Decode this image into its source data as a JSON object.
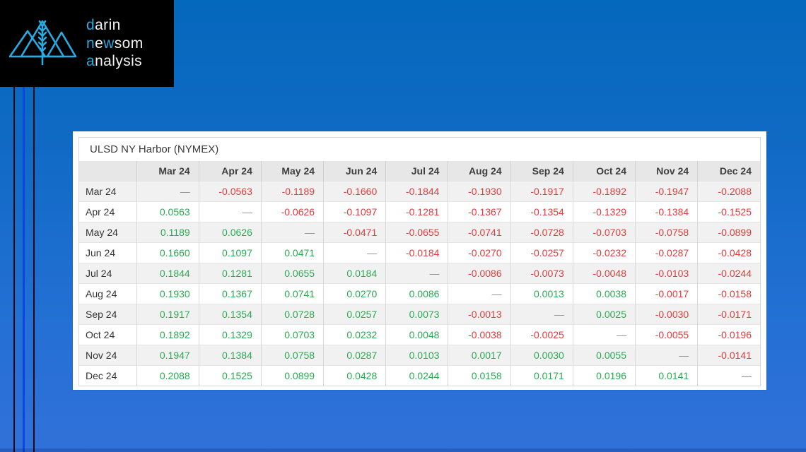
{
  "colors": {
    "accent": "#29abe2",
    "positive": "#2aab52",
    "negative": "#e23b3c",
    "dash": "#8d8d8d",
    "stripe-blue": "#0a46e6",
    "bg-top": "#0468bc",
    "bg-bottom": "#3171d9"
  },
  "logo": {
    "line1": {
      "a": "d",
      "b": "arin"
    },
    "line2": {
      "a": "n",
      "b": "e",
      "c": "w",
      "d": "som"
    },
    "line3": {
      "a": "a",
      "b": "nalysis"
    }
  },
  "table": {
    "title": "ULSD NY Harbor (NYMEX)",
    "corner": "",
    "columns": [
      "Mar 24",
      "Apr 24",
      "May 24",
      "Jun 24",
      "Jul 24",
      "Aug 24",
      "Sep 24",
      "Oct 24",
      "Nov 24",
      "Dec 24"
    ],
    "rows": [
      {
        "label": "Mar 24",
        "values": [
          "—",
          "-0.0563",
          "-0.1189",
          "-0.1660",
          "-0.1844",
          "-0.1930",
          "-0.1917",
          "-0.1892",
          "-0.1947",
          "-0.2088"
        ]
      },
      {
        "label": "Apr 24",
        "values": [
          "0.0563",
          "—",
          "-0.0626",
          "-0.1097",
          "-0.1281",
          "-0.1367",
          "-0.1354",
          "-0.1329",
          "-0.1384",
          "-0.1525"
        ]
      },
      {
        "label": "May 24",
        "values": [
          "0.1189",
          "0.0626",
          "—",
          "-0.0471",
          "-0.0655",
          "-0.0741",
          "-0.0728",
          "-0.0703",
          "-0.0758",
          "-0.0899"
        ]
      },
      {
        "label": "Jun 24",
        "values": [
          "0.1660",
          "0.1097",
          "0.0471",
          "—",
          "-0.0184",
          "-0.0270",
          "-0.0257",
          "-0.0232",
          "-0.0287",
          "-0.0428"
        ]
      },
      {
        "label": "Jul 24",
        "values": [
          "0.1844",
          "0.1281",
          "0.0655",
          "0.0184",
          "—",
          "-0.0086",
          "-0.0073",
          "-0.0048",
          "-0.0103",
          "-0.0244"
        ]
      },
      {
        "label": "Aug 24",
        "values": [
          "0.1930",
          "0.1367",
          "0.0741",
          "0.0270",
          "0.0086",
          "—",
          "0.0013",
          "0.0038",
          "-0.0017",
          "-0.0158"
        ]
      },
      {
        "label": "Sep 24",
        "values": [
          "0.1917",
          "0.1354",
          "0.0728",
          "0.0257",
          "0.0073",
          "-0.0013",
          "—",
          "0.0025",
          "-0.0030",
          "-0.0171"
        ]
      },
      {
        "label": "Oct 24",
        "values": [
          "0.1892",
          "0.1329",
          "0.0703",
          "0.0232",
          "0.0048",
          "-0.0038",
          "-0.0025",
          "—",
          "-0.0055",
          "-0.0196"
        ]
      },
      {
        "label": "Nov 24",
        "values": [
          "0.1947",
          "0.1384",
          "0.0758",
          "0.0287",
          "0.0103",
          "0.0017",
          "0.0030",
          "0.0055",
          "—",
          "-0.0141"
        ]
      },
      {
        "label": "Dec 24",
        "values": [
          "0.2088",
          "0.1525",
          "0.0899",
          "0.0428",
          "0.0244",
          "0.0158",
          "0.0171",
          "0.0196",
          "0.0141",
          "—"
        ]
      }
    ]
  }
}
